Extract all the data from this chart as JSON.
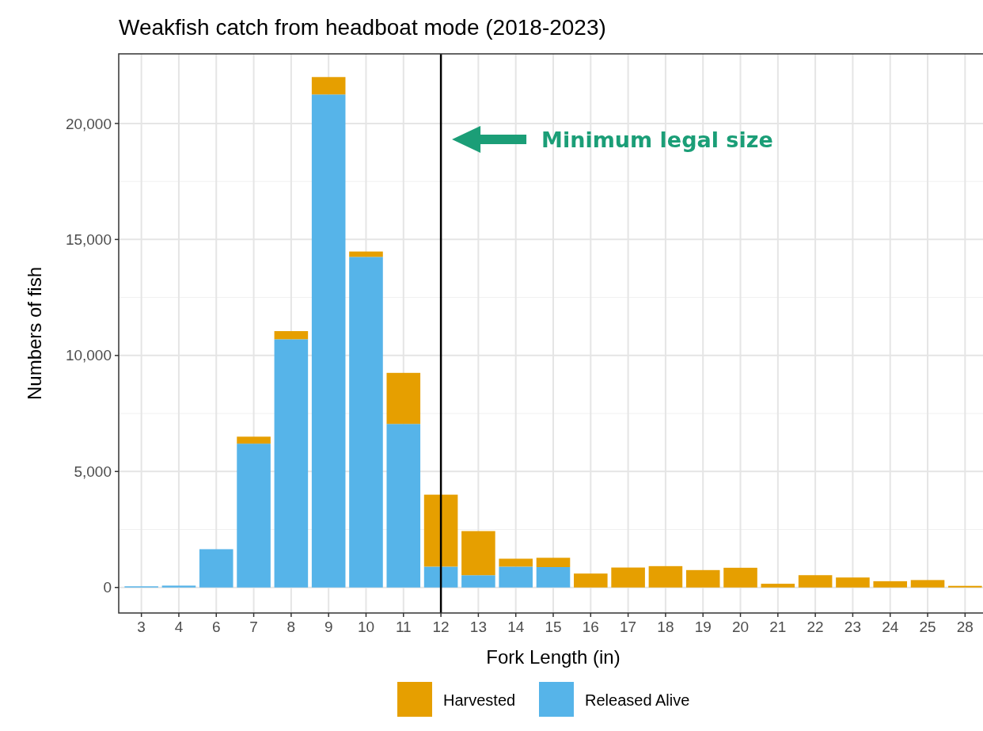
{
  "chart_data": {
    "type": "bar",
    "stacked": true,
    "title": "Weakfish catch from headboat mode (2018-2023)",
    "xlabel": "Fork Length (in)",
    "ylabel": "Numbers of fish",
    "categories": [
      "3",
      "4",
      "6",
      "7",
      "8",
      "9",
      "10",
      "11",
      "12",
      "13",
      "14",
      "15",
      "16",
      "17",
      "18",
      "19",
      "20",
      "21",
      "22",
      "23",
      "24",
      "25",
      "28"
    ],
    "series": [
      {
        "name": "Released Alive",
        "color": "#56b4e9",
        "values": [
          50,
          80,
          1650,
          6200,
          10700,
          21250,
          14250,
          7050,
          900,
          530,
          900,
          880,
          0,
          0,
          0,
          0,
          0,
          0,
          0,
          0,
          0,
          0,
          0
        ]
      },
      {
        "name": "Harvested",
        "color": "#e69f00",
        "values": [
          0,
          0,
          0,
          300,
          350,
          750,
          230,
          2200,
          3100,
          1900,
          340,
          400,
          600,
          860,
          920,
          750,
          850,
          160,
          530,
          430,
          270,
          320,
          70
        ]
      }
    ],
    "ylim": [
      -1100,
      23000
    ],
    "yticks": [
      {
        "value": 0,
        "label": "0"
      },
      {
        "value": 5000,
        "label": "5,000"
      },
      {
        "value": 10000,
        "label": "10,000"
      },
      {
        "value": 15000,
        "label": "15,000"
      },
      {
        "value": 20000,
        "label": "20,000"
      }
    ],
    "grid": true,
    "legend": "bottom",
    "ref_lines": [
      {
        "axis": "x",
        "value": "12",
        "color": "#000000"
      }
    ],
    "annotations": [
      "Minimum legal size"
    ]
  }
}
